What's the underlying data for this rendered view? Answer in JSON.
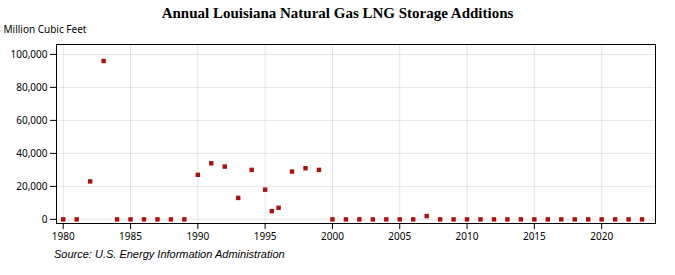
{
  "chart_data": {
    "type": "scatter",
    "title": "Annual Louisiana Natural Gas LNG Storage Additions",
    "ylabel": "Million Cubic Feet",
    "source": "Source: U.S. Energy Information Administration",
    "x": [
      1980,
      1981,
      1982,
      1983,
      1984,
      1985,
      1986,
      1987,
      1988,
      1989,
      1990,
      1991,
      1992,
      1993,
      1994,
      1995,
      1995.5,
      1996,
      1997,
      1998,
      1999,
      2000,
      2001,
      2002,
      2003,
      2004,
      2005,
      2006,
      2007,
      2008,
      2009,
      2010,
      2011,
      2012,
      2013,
      2014,
      2015,
      2016,
      2017,
      2018,
      2019,
      2020,
      2021,
      2022,
      2023
    ],
    "values": [
      0,
      0,
      23000,
      96000,
      0,
      0,
      0,
      0,
      0,
      0,
      27000,
      34000,
      32000,
      13000,
      30000,
      18000,
      5000,
      7000,
      29000,
      31000,
      30000,
      0,
      0,
      0,
      0,
      0,
      0,
      0,
      2000,
      0,
      0,
      0,
      0,
      0,
      0,
      0,
      0,
      0,
      0,
      0,
      0,
      0,
      0,
      0,
      0
    ],
    "color": "#aa1111",
    "marker": "square",
    "xlim": [
      1979.5,
      2024
    ],
    "ylim": [
      -2500,
      106000
    ],
    "xticks": [
      1980,
      1985,
      1990,
      1995,
      2000,
      2005,
      2010,
      2015,
      2020
    ],
    "yticks": [
      0,
      {
        "value": 20000,
        "label": "20,000"
      },
      {
        "value": 40000,
        "label": "40,000"
      },
      {
        "value": 60000,
        "label": "60,000"
      },
      {
        "value": 80000,
        "label": "80,000"
      },
      {
        "value": 100000,
        "label": "100,000"
      }
    ],
    "grid": true
  }
}
